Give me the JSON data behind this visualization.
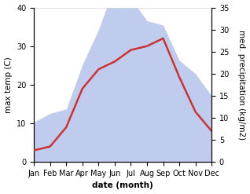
{
  "months": [
    "Jan",
    "Feb",
    "Mar",
    "Apr",
    "May",
    "Jun",
    "Jul",
    "Aug",
    "Sep",
    "Oct",
    "Nov",
    "Dec"
  ],
  "temperature": [
    3,
    4,
    9,
    19,
    24,
    26,
    29,
    30,
    32,
    22,
    13,
    8
  ],
  "precipitation": [
    9,
    11,
    12,
    22,
    30,
    40,
    37,
    32,
    31,
    23,
    20,
    15
  ],
  "temp_color": "#cc3333",
  "precip_color": "#c0ccee",
  "ylabel_left": "max temp (C)",
  "ylabel_right": "med. precipitation (kg/m2)",
  "xlabel": "date (month)",
  "ylim_left": [
    0,
    40
  ],
  "ylim_right": [
    0,
    35
  ],
  "yticks_left": [
    0,
    10,
    20,
    30,
    40
  ],
  "yticks_right": [
    0,
    5,
    10,
    15,
    20,
    25,
    30,
    35
  ],
  "background_color": "#ffffff",
  "line_width": 1.8,
  "label_fontsize": 7.5,
  "tick_fontsize": 7
}
